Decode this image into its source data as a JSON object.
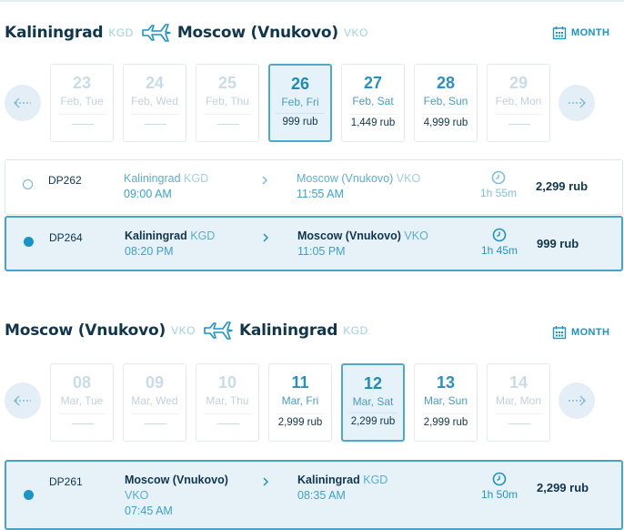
{
  "outbound": {
    "from_city": "Kaliningrad",
    "from_code": "KGD",
    "to_city": "Moscow (Vnukovo)",
    "to_code": "VKO",
    "month_label": "MONTH",
    "days": [
      {
        "num": "23",
        "weekday": "Feb, Tue",
        "price": null
      },
      {
        "num": "24",
        "weekday": "Feb, Wed",
        "price": null
      },
      {
        "num": "25",
        "weekday": "Feb, Thu",
        "price": null
      },
      {
        "num": "26",
        "weekday": "Feb, Fri",
        "price": "999 rub"
      },
      {
        "num": "27",
        "weekday": "Feb, Sat",
        "price": "1,449 rub"
      },
      {
        "num": "28",
        "weekday": "Feb, Sun",
        "price": "4,999 rub"
      },
      {
        "num": "29",
        "weekday": "Feb, Mon",
        "price": null
      }
    ],
    "flights": [
      {
        "number": "DP262",
        "from_city": "Kaliningrad",
        "from_code": "KGD",
        "dep_time": "09:00 AM",
        "to_city": "Moscow (Vnukovo)",
        "to_code": "VKO",
        "arr_time": "11:55 AM",
        "duration": "1h 55m",
        "price": "2,299 rub"
      },
      {
        "number": "DP264",
        "from_city": "Kaliningrad",
        "from_code": "KGD",
        "dep_time": "08:20 PM",
        "to_city": "Moscow (Vnukovo)",
        "to_code": "VKO",
        "arr_time": "11:05 PM",
        "duration": "1h 45m",
        "price": "999 rub"
      }
    ]
  },
  "return": {
    "from_city": "Moscow (Vnukovo)",
    "from_code": "VKO",
    "to_city": "Kaliningrad",
    "to_code": "KGD",
    "month_label": "MONTH",
    "days": [
      {
        "num": "08",
        "weekday": "Mar, Tue",
        "price": null
      },
      {
        "num": "09",
        "weekday": "Mar, Wed",
        "price": null
      },
      {
        "num": "10",
        "weekday": "Mar, Thu",
        "price": null
      },
      {
        "num": "11",
        "weekday": "Mar, Fri",
        "price": "2,999 rub"
      },
      {
        "num": "12",
        "weekday": "Mar, Sat",
        "price": "2,299 rub"
      },
      {
        "num": "13",
        "weekday": "Mar, Sun",
        "price": "2,999 rub"
      },
      {
        "num": "14",
        "weekday": "Mar, Mon",
        "price": null
      }
    ],
    "flights": [
      {
        "number": "DP261",
        "from_city": "Moscow (Vnukovo)",
        "from_code": "VKO",
        "dep_time": "07:45 AM",
        "to_city": "Kaliningrad",
        "to_code": "KGD",
        "arr_time": "08:35 AM",
        "duration": "1h 50m",
        "price": "2,299 rub"
      }
    ]
  },
  "colors": {
    "accent": "#1a93c5",
    "dark_text": "#10364e",
    "selected_bg": "#e6f1f8",
    "selected_border": "#4aa3c7",
    "nav_bg": "#e4eef6"
  }
}
